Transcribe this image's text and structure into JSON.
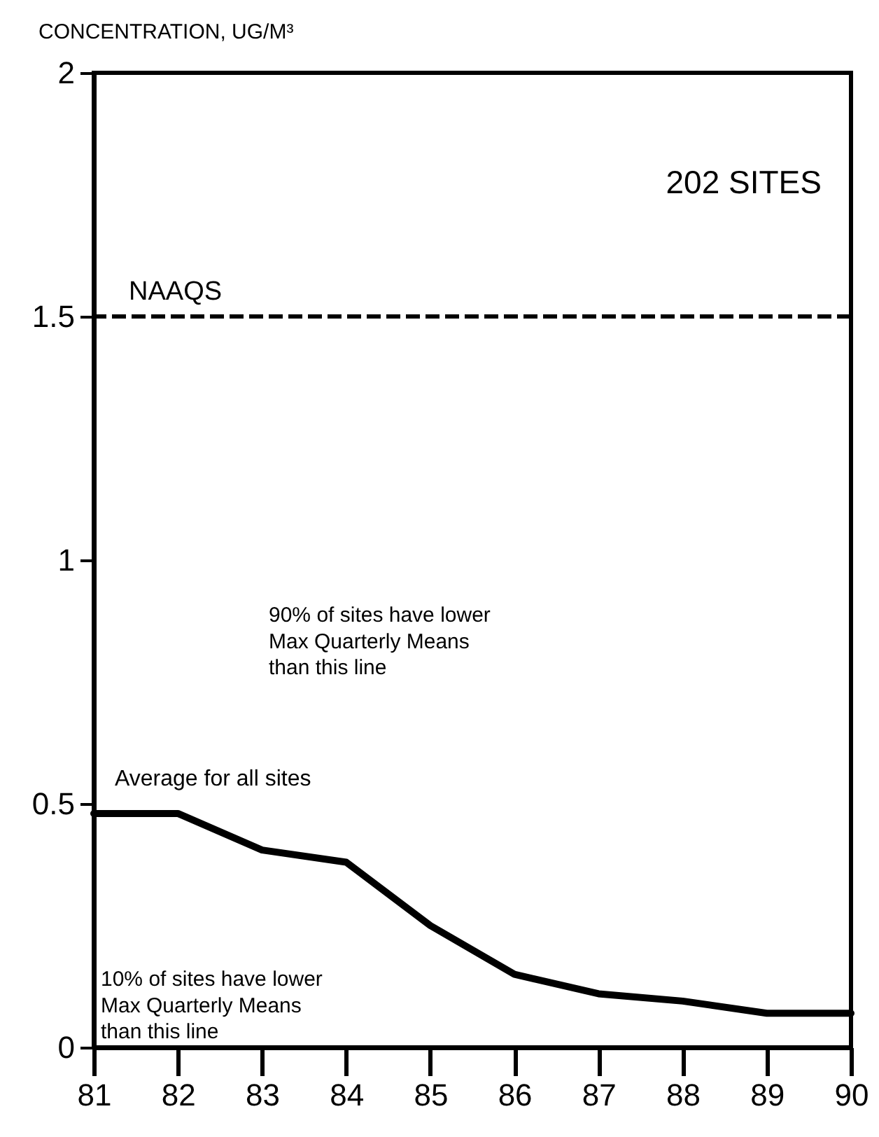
{
  "chart_data": {
    "type": "line",
    "ylabel": "CONCENTRATION, UG/M³",
    "x": [
      81,
      82,
      83,
      84,
      85,
      86,
      87,
      88,
      89,
      90
    ],
    "series": [
      {
        "color": "#000000",
        "values": [
          0.48,
          0.48,
          0.405,
          0.38,
          0.25,
          0.15,
          0.11,
          0.095,
          0.07,
          0.07
        ]
      }
    ],
    "xlim": [
      81,
      90
    ],
    "xticks": [
      81,
      82,
      83,
      84,
      85,
      86,
      87,
      88,
      89,
      90
    ],
    "ylim": [
      0,
      2
    ],
    "yticks": [
      0,
      0.5,
      1,
      1.5,
      2
    ],
    "ref_lines": [
      {
        "axis": "y",
        "value": 1.5,
        "label": "NAAQS",
        "color": "#000000",
        "line_style": "dashed"
      }
    ],
    "annotations": [
      "202 SITES",
      "Average for all sites",
      "90% of sites have lower\nMax Quarterly Means\nthan this line",
      "10% of sites have lower\nMax Quarterly Means\nthan this line"
    ],
    "grid": false,
    "marker": "none",
    "line_style": "solid"
  }
}
